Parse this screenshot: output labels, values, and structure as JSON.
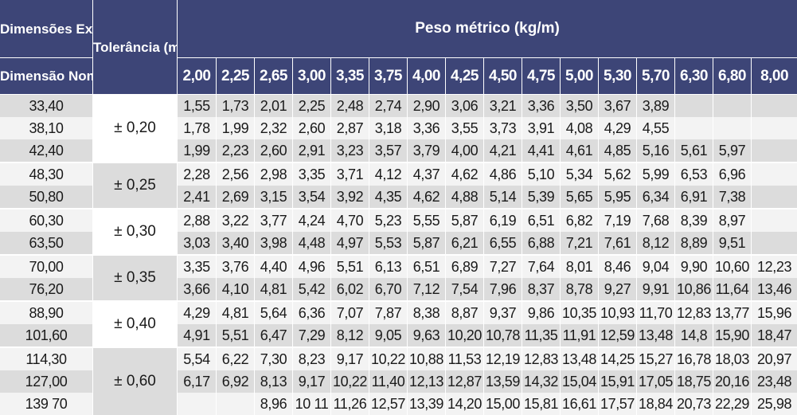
{
  "header": {
    "external_dimensions": "Dimensões Externas (mm)",
    "tolerance": "Tolerância (mm)",
    "metric_weight": "Peso métrico (kg/m)",
    "nominal_dimension": "Dimensão Nominal"
  },
  "wall_thicknesses": [
    "2,00",
    "2,25",
    "2,65",
    "3,00",
    "3,35",
    "3,75",
    "4,00",
    "4,25",
    "4,50",
    "4,75",
    "5,00",
    "5,30",
    "5,70",
    "6,30",
    "6,80",
    "8,00"
  ],
  "rows": [
    {
      "od": "33,40",
      "tol": "± 0,20",
      "values": [
        "1,55",
        "1,73",
        "2,01",
        "2,25",
        "2,48",
        "2,74",
        "2,90",
        "3,06",
        "3,21",
        "3,36",
        "3,50",
        "3,67",
        "3,89",
        "",
        "",
        ""
      ]
    },
    {
      "od": "38,10",
      "tol": "± 0,20",
      "values": [
        "1,78",
        "1,99",
        "2,32",
        "2,60",
        "2,87",
        "3,18",
        "3,36",
        "3,55",
        "3,73",
        "3,91",
        "4,08",
        "4,29",
        "4,55",
        "",
        "",
        ""
      ]
    },
    {
      "od": "42,40",
      "tol": "± 0,20",
      "values": [
        "1,99",
        "2,23",
        "2,60",
        "2,91",
        "3,23",
        "3,57",
        "3,79",
        "4,00",
        "4,21",
        "4,41",
        "4,61",
        "4,85",
        "5,16",
        "5,61",
        "5,97",
        ""
      ]
    },
    {
      "od": "48,30",
      "tol": "± 0,25",
      "values": [
        "2,28",
        "2,56",
        "2,98",
        "3,35",
        "3,71",
        "4,12",
        "4,37",
        "4,62",
        "4,86",
        "5,10",
        "5,34",
        "5,62",
        "5,99",
        "6,53",
        "6,96",
        ""
      ]
    },
    {
      "od": "50,80",
      "tol": "± 0,25",
      "values": [
        "2,41",
        "2,69",
        "3,15",
        "3,54",
        "3,92",
        "4,35",
        "4,62",
        "4,88",
        "5,14",
        "5,39",
        "5,65",
        "5,95",
        "6,34",
        "6,91",
        "7,38",
        ""
      ]
    },
    {
      "od": "60,30",
      "tol": "± 0,30",
      "values": [
        "2,88",
        "3,22",
        "3,77",
        "4,24",
        "4,70",
        "5,23",
        "5,55",
        "5,87",
        "6,19",
        "6,51",
        "6,82",
        "7,19",
        "7,68",
        "8,39",
        "8,97",
        ""
      ]
    },
    {
      "od": "63,50",
      "tol": "± 0,30",
      "values": [
        "3,03",
        "3,40",
        "3,98",
        "4,48",
        "4,97",
        "5,53",
        "5,87",
        "6,21",
        "6,55",
        "6,88",
        "7,21",
        "7,61",
        "8,12",
        "8,89",
        "9,51",
        ""
      ]
    },
    {
      "od": "70,00",
      "tol": "± 0,35",
      "values": [
        "3,35",
        "3,76",
        "4,40",
        "4,96",
        "5,51",
        "6,13",
        "6,51",
        "6,89",
        "7,27",
        "7,64",
        "8,01",
        "8,46",
        "9,04",
        "9,90",
        "10,60",
        "12,23"
      ]
    },
    {
      "od": "76,20",
      "tol": "± 0,35",
      "values": [
        "3,66",
        "4,10",
        "4,81",
        "5,42",
        "6,02",
        "6,70",
        "7,12",
        "7,54",
        "7,96",
        "8,37",
        "8,78",
        "9,27",
        "9,91",
        "10,86",
        "11,64",
        "13,46"
      ]
    },
    {
      "od": "88,90",
      "tol": "± 0,40",
      "values": [
        "4,29",
        "4,81",
        "5,64",
        "6,36",
        "7,07",
        "7,87",
        "8,38",
        "8,87",
        "9,37",
        "9,86",
        "10,35",
        "10,93",
        "11,70",
        "12,83",
        "13,77",
        "15,96"
      ]
    },
    {
      "od": "101,60",
      "tol": "± 0,40",
      "values": [
        "4,91",
        "5,51",
        "6,47",
        "7,29",
        "8,12",
        "9,05",
        "9,63",
        "10,20",
        "10,78",
        "11,35",
        "11,91",
        "12,59",
        "13,48",
        "14,8",
        "15,90",
        "18,47"
      ]
    },
    {
      "od": "114,30",
      "tol": "± 0,60",
      "values": [
        "5,54",
        "6,22",
        "7,30",
        "8,23",
        "9,17",
        "10,22",
        "10,88",
        "11,53",
        "12,19",
        "12,83",
        "13,48",
        "14,25",
        "15,27",
        "16,78",
        "18,03",
        "20,97"
      ]
    },
    {
      "od": "127,00",
      "tol": "± 0,60",
      "values": [
        "6,17",
        "6,92",
        "8,13",
        "9,17",
        "10,22",
        "11,40",
        "12,13",
        "12,87",
        "13,59",
        "14,32",
        "15,04",
        "15,91",
        "17,05",
        "18,75",
        "20,16",
        "23,48"
      ]
    },
    {
      "od": "139 70",
      "tol": "± 0,60",
      "values": [
        "",
        "",
        "8,96",
        "10 11",
        "11,26",
        "12,57",
        "13,39",
        "14,20",
        "15,00",
        "15,81",
        "16,61",
        "17,57",
        "18,84",
        "20,73",
        "22,29",
        "25,98"
      ]
    }
  ]
}
